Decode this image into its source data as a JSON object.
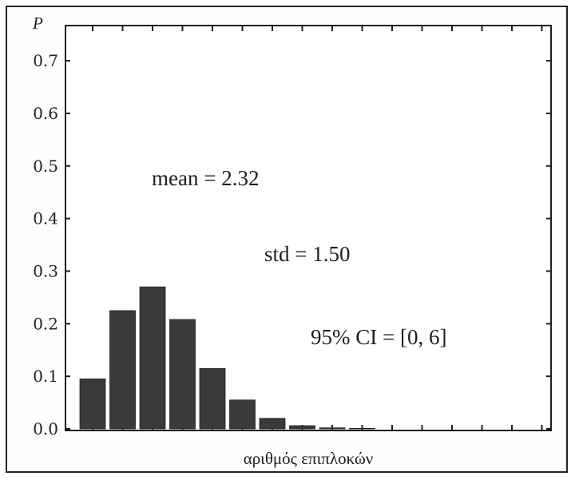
{
  "chart_data": {
    "type": "bar",
    "title": "",
    "xlabel": "αριθμός επιπλοκών",
    "ylabel": "P",
    "ylim": [
      0,
      0.77
    ],
    "yticks": [
      0.0,
      0.1,
      0.2,
      0.3,
      0.4,
      0.5,
      0.6,
      0.7
    ],
    "ytick_labels": [
      "0.0",
      "0.1",
      "0.2",
      "0.3",
      "0.4",
      "0.5",
      "0.6",
      "0.7"
    ],
    "x": [
      0,
      1,
      2,
      3,
      4,
      5,
      6,
      7,
      8,
      9,
      10,
      11,
      12,
      13,
      14,
      15
    ],
    "values": [
      0.095,
      0.225,
      0.27,
      0.208,
      0.115,
      0.055,
      0.02,
      0.006,
      0.002,
      0.001,
      0.0,
      0.0,
      0.0,
      0.0,
      0.0,
      0.0
    ],
    "bar_color": "#3a3a3a",
    "grid": false,
    "annotations": [
      {
        "id": "mean",
        "text": "mean = 2.32"
      },
      {
        "id": "std",
        "text": "std = 1.50"
      },
      {
        "id": "ci",
        "text": "95% CI = [0, 6]"
      }
    ]
  }
}
